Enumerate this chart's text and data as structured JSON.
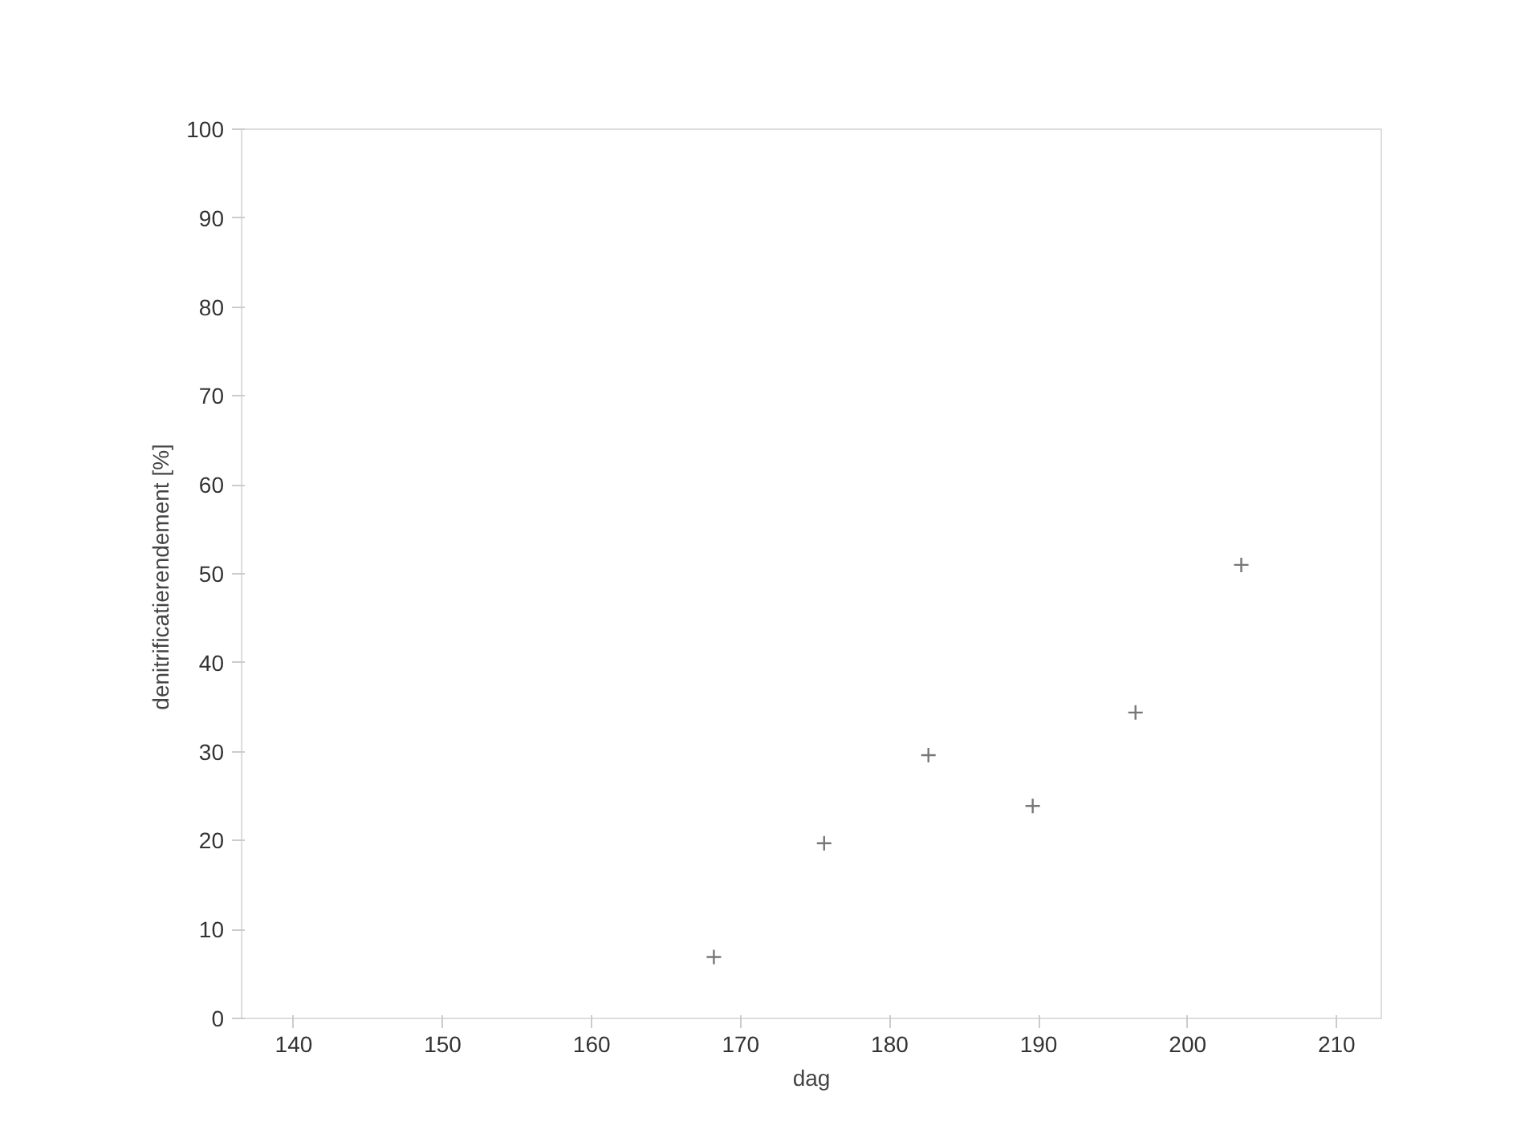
{
  "chart_data": {
    "type": "scatter",
    "xlabel": "dag",
    "ylabel": "denitrificatierendement  [%]",
    "x": [
      168.2,
      175.6,
      182.6,
      189.6,
      196.5,
      203.6
    ],
    "values": [
      6.9,
      19.7,
      29.6,
      23.9,
      34.4,
      51.0
    ],
    "color": "#777777",
    "marker": "cross",
    "xlim": [
      136.5,
      213
    ],
    "ylim": [
      0,
      100
    ],
    "xticks": [
      140,
      150,
      160,
      170,
      180,
      190,
      200,
      210
    ],
    "yticks": [
      0,
      10,
      20,
      30,
      40,
      50,
      60,
      70,
      80,
      90,
      100
    ],
    "grid": false
  }
}
